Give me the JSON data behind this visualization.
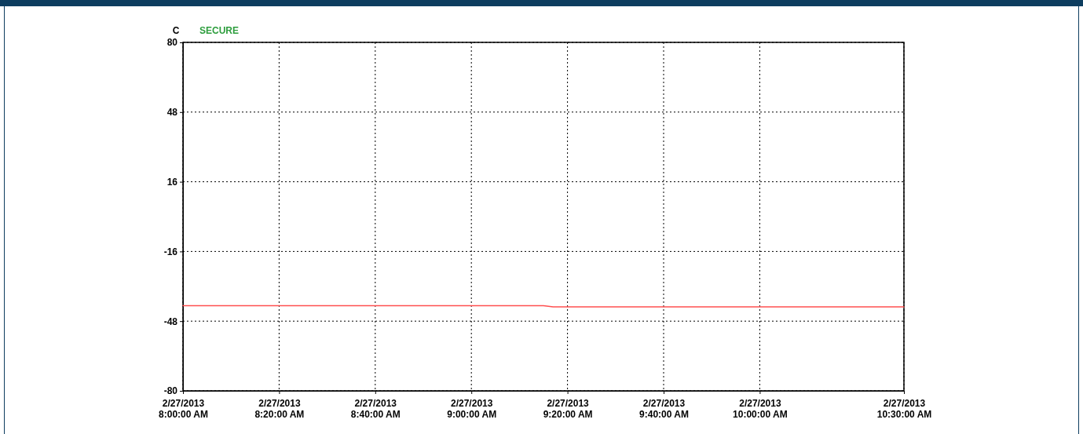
{
  "chart_data": {
    "type": "line",
    "ylabel": "C",
    "annotations": [
      "SECURE"
    ],
    "x": [
      "2013-02-27T08:00",
      "2013-02-27T09:15",
      "2013-02-27T09:17",
      "2013-02-27T10:30"
    ],
    "series": [
      {
        "color": "#ff5050",
        "values": [
          -40.9,
          -40.9,
          -41.4,
          -41.4
        ]
      }
    ],
    "xlim": [
      "2013-02-27T08:00",
      "2013-02-27T10:30"
    ],
    "xticks": [
      {
        "value": "2013-02-27T08:00",
        "label": "2/27/2013\n8:00:00 AM"
      },
      {
        "value": "2013-02-27T08:20",
        "label": "2/27/2013\n8:20:00 AM"
      },
      {
        "value": "2013-02-27T08:40",
        "label": "2/27/2013\n8:40:00 AM"
      },
      {
        "value": "2013-02-27T09:00",
        "label": "2/27/2013\n9:00:00 AM"
      },
      {
        "value": "2013-02-27T09:20",
        "label": "2/27/2013\n9:20:00 AM"
      },
      {
        "value": "2013-02-27T09:40",
        "label": "2/27/2013\n9:40:00 AM"
      },
      {
        "value": "2013-02-27T10:00",
        "label": "2/27/2013\n10:00:00 AM"
      },
      {
        "value": "2013-02-27T10:30",
        "label": "2/27/2013\n10:30:00 AM"
      }
    ],
    "ylim": [
      -80,
      80
    ],
    "yticks": [
      -80,
      -48,
      -16,
      16,
      48,
      80
    ],
    "grid": true,
    "marker": "none",
    "line_style": "solid"
  }
}
